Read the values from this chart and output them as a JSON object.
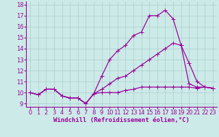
{
  "xlabel": "Windchill (Refroidissement éolien,°C)",
  "bg_color": "#cceae8",
  "line_color": "#990099",
  "grid_color": "#aacccc",
  "ylim": [
    8.7,
    18.3
  ],
  "xlim": [
    -0.5,
    23.5
  ],
  "yticks": [
    9,
    10,
    11,
    12,
    13,
    14,
    15,
    16,
    17,
    18
  ],
  "xticks": [
    0,
    1,
    2,
    3,
    4,
    5,
    6,
    7,
    8,
    9,
    10,
    11,
    12,
    13,
    14,
    15,
    16,
    17,
    18,
    19,
    20,
    21,
    22,
    23
  ],
  "series": [
    [
      10.0,
      9.8,
      10.3,
      10.3,
      9.7,
      9.5,
      9.5,
      9.0,
      9.9,
      11.5,
      13.0,
      13.8,
      14.3,
      15.2,
      15.5,
      17.0,
      17.0,
      17.5,
      16.7,
      14.3,
      10.8,
      10.5,
      10.5,
      10.4
    ],
    [
      10.0,
      9.8,
      10.3,
      10.3,
      9.7,
      9.5,
      9.5,
      9.0,
      9.9,
      10.3,
      10.8,
      11.3,
      11.5,
      12.0,
      12.5,
      13.0,
      13.5,
      14.0,
      14.5,
      14.3,
      12.7,
      11.0,
      10.5,
      10.4
    ],
    [
      10.0,
      9.8,
      10.3,
      10.3,
      9.7,
      9.5,
      9.5,
      9.0,
      9.9,
      10.0,
      10.0,
      10.0,
      10.2,
      10.3,
      10.5,
      10.5,
      10.5,
      10.5,
      10.5,
      10.5,
      10.5,
      10.4,
      10.5,
      10.4
    ]
  ],
  "marker": "+",
  "marker_size": 4,
  "line_width": 0.9,
  "font_size_ticks": 6,
  "font_size_xlabel": 6.5
}
